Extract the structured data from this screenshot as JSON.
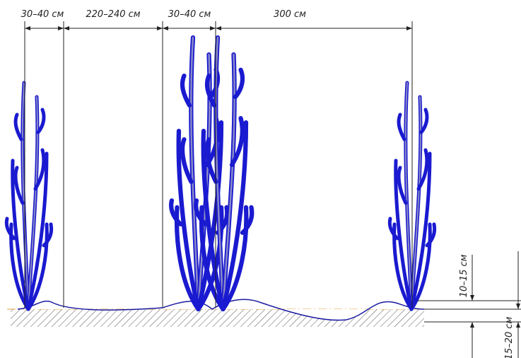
{
  "dimensions": {
    "top": [
      "30–40 см",
      "220–240 см",
      "30–40 см",
      "300 см"
    ],
    "side": [
      "10–15 см",
      "15–20 см"
    ]
  }
}
